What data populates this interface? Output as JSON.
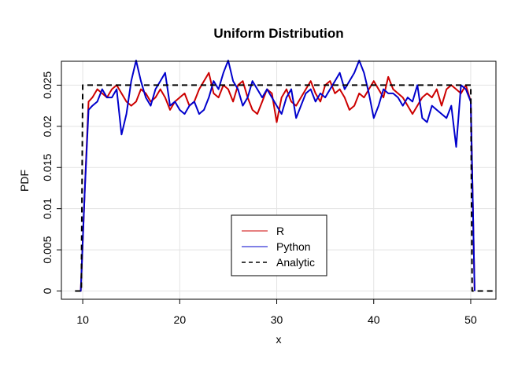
{
  "chart_data": {
    "type": "line",
    "title": "Uniform Distribution",
    "xlabel": "x",
    "ylabel": "PDF",
    "xlim": [
      7.8,
      52.6
    ],
    "ylim": [
      -0.001,
      0.0279
    ],
    "x_ticks": [
      10,
      20,
      30,
      40,
      50
    ],
    "x_tick_labels": [
      "10",
      "20",
      "30",
      "40",
      "50"
    ],
    "y_ticks": [
      0,
      0.005,
      0.01,
      0.015,
      0.02,
      0.025
    ],
    "y_tick_labels": [
      "0",
      "0.005",
      "0.01",
      "0.015",
      "0.02",
      "0.025"
    ],
    "grid": true,
    "legend_position": "bottom-center",
    "colors": {
      "R": "#cc0000",
      "Python": "#0000cc",
      "Analytic": "#000000"
    },
    "series": [
      {
        "name": "R",
        "style": "solid",
        "x": [
          9.5,
          9.8,
          10.2,
          10.6,
          11.0,
          11.5,
          12.0,
          12.5,
          13.0,
          13.5,
          14.0,
          14.5,
          15.0,
          15.5,
          16.0,
          16.5,
          17.0,
          17.5,
          18.0,
          18.5,
          19.0,
          19.5,
          20.0,
          20.5,
          21.0,
          21.5,
          22.0,
          22.5,
          23.0,
          23.5,
          24.0,
          24.5,
          25.0,
          25.5,
          26.0,
          26.5,
          27.0,
          27.5,
          28.0,
          28.5,
          29.0,
          29.5,
          30.0,
          30.5,
          31.0,
          31.5,
          32.0,
          32.5,
          33.0,
          33.5,
          34.0,
          34.5,
          35.0,
          35.5,
          36.0,
          36.5,
          37.0,
          37.5,
          38.0,
          38.5,
          39.0,
          39.5,
          40.0,
          40.5,
          41.0,
          41.5,
          42.0,
          42.5,
          43.0,
          43.5,
          44.0,
          44.5,
          45.0,
          45.5,
          46.0,
          46.5,
          47.0,
          47.5,
          48.0,
          48.5,
          49.0,
          49.5,
          50.0,
          50.4
        ],
        "y": [
          0.0,
          0.0,
          0.012,
          0.023,
          0.0235,
          0.0245,
          0.024,
          0.0235,
          0.0245,
          0.025,
          0.024,
          0.023,
          0.0225,
          0.023,
          0.0245,
          0.024,
          0.023,
          0.0235,
          0.0245,
          0.0235,
          0.022,
          0.023,
          0.0235,
          0.024,
          0.0225,
          0.023,
          0.0245,
          0.0255,
          0.0265,
          0.024,
          0.0235,
          0.025,
          0.0245,
          0.023,
          0.025,
          0.0255,
          0.0235,
          0.022,
          0.0215,
          0.023,
          0.0245,
          0.024,
          0.0205,
          0.0235,
          0.0245,
          0.023,
          0.0225,
          0.0235,
          0.0245,
          0.0255,
          0.024,
          0.023,
          0.025,
          0.0255,
          0.024,
          0.0245,
          0.0235,
          0.022,
          0.0225,
          0.024,
          0.0235,
          0.0245,
          0.0255,
          0.0245,
          0.0235,
          0.026,
          0.0245,
          0.024,
          0.0235,
          0.0225,
          0.0215,
          0.0225,
          0.0235,
          0.024,
          0.0235,
          0.0245,
          0.0225,
          0.0245,
          0.025,
          0.0245,
          0.024,
          0.025,
          0.023,
          0.0
        ]
      },
      {
        "name": "Python",
        "style": "solid",
        "x": [
          9.5,
          9.8,
          10.2,
          10.6,
          11.0,
          11.5,
          12.0,
          12.5,
          13.0,
          13.5,
          14.0,
          14.5,
          15.0,
          15.5,
          16.0,
          16.5,
          17.0,
          17.5,
          18.0,
          18.5,
          19.0,
          19.5,
          20.0,
          20.5,
          21.0,
          21.5,
          22.0,
          22.5,
          23.0,
          23.5,
          24.0,
          24.5,
          25.0,
          25.5,
          26.0,
          26.5,
          27.0,
          27.5,
          28.0,
          28.5,
          29.0,
          29.5,
          30.0,
          30.5,
          31.0,
          31.5,
          32.0,
          32.5,
          33.0,
          33.5,
          34.0,
          34.5,
          35.0,
          35.5,
          36.0,
          36.5,
          37.0,
          37.5,
          38.0,
          38.5,
          39.0,
          39.5,
          40.0,
          40.5,
          41.0,
          41.5,
          42.0,
          42.5,
          43.0,
          43.5,
          44.0,
          44.5,
          45.0,
          45.5,
          46.0,
          46.5,
          47.0,
          47.5,
          48.0,
          48.5,
          49.0,
          49.5,
          50.0,
          50.4
        ],
        "y": [
          0.0,
          0.0,
          0.012,
          0.022,
          0.0225,
          0.023,
          0.0245,
          0.0235,
          0.0235,
          0.0245,
          0.019,
          0.0215,
          0.0255,
          0.028,
          0.0255,
          0.0235,
          0.0225,
          0.0245,
          0.0255,
          0.0265,
          0.0225,
          0.023,
          0.022,
          0.0215,
          0.0225,
          0.023,
          0.0215,
          0.022,
          0.0235,
          0.0255,
          0.0245,
          0.0265,
          0.028,
          0.0255,
          0.0245,
          0.0225,
          0.0235,
          0.0255,
          0.0245,
          0.0235,
          0.0245,
          0.0235,
          0.0225,
          0.0215,
          0.0235,
          0.0245,
          0.021,
          0.0225,
          0.024,
          0.0245,
          0.023,
          0.024,
          0.0235,
          0.0245,
          0.0255,
          0.0265,
          0.0245,
          0.0255,
          0.0265,
          0.028,
          0.0265,
          0.024,
          0.021,
          0.0225,
          0.0245,
          0.024,
          0.024,
          0.0235,
          0.0225,
          0.0235,
          0.023,
          0.025,
          0.021,
          0.0205,
          0.0225,
          0.022,
          0.0215,
          0.021,
          0.0225,
          0.0175,
          0.025,
          0.0245,
          0.023,
          0.0
        ]
      },
      {
        "name": "Analytic",
        "style": "dashed",
        "x": [
          9.2,
          9.85,
          10.0,
          50.0,
          50.15,
          52.3
        ],
        "y": [
          0.0,
          0.0,
          0.025,
          0.025,
          0.0,
          0.0
        ]
      }
    ]
  }
}
